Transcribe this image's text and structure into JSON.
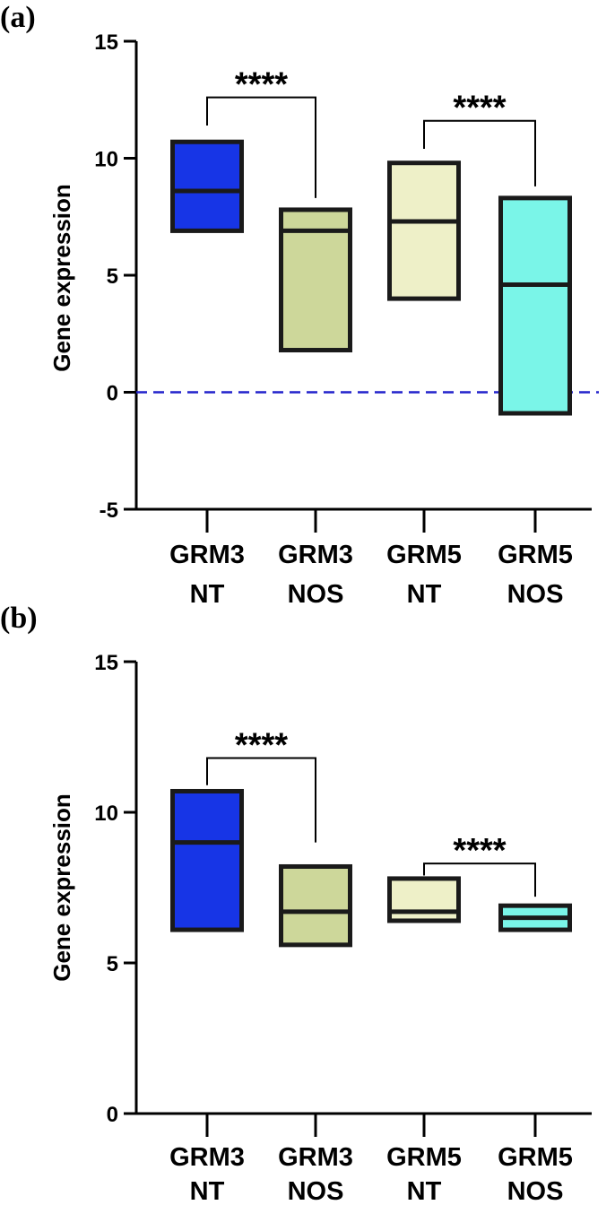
{
  "chart_data": [
    {
      "panel_label": "(a)",
      "type": "box",
      "title": "",
      "xlabel": "",
      "ylabel": "Gene expression",
      "ylim": [
        -5,
        15
      ],
      "yticks": [
        "15",
        "10",
        "5",
        "0",
        "-5"
      ],
      "reference_line": {
        "y": 0,
        "style": "dashed",
        "color": "#2222cc"
      },
      "categories": [
        {
          "line1": "GRM3",
          "line2": "NT"
        },
        {
          "line1": "GRM3",
          "line2": "NOS"
        },
        {
          "line1": "GRM5",
          "line2": "NT"
        },
        {
          "line1": "GRM5",
          "line2": "NOS"
        }
      ],
      "boxes": [
        {
          "min": 6.9,
          "median": 8.6,
          "max": 10.7,
          "color": "#1735e6"
        },
        {
          "min": 1.8,
          "median": 6.9,
          "max": 7.8,
          "color": "#cdd79a"
        },
        {
          "min": 4.0,
          "median": 7.3,
          "max": 9.8,
          "color": "#eef0c8"
        },
        {
          "min": -0.9,
          "median": 4.6,
          "max": 8.3,
          "color": "#7af5e8"
        }
      ],
      "significance": [
        {
          "from": 0,
          "to": 1,
          "label": "****",
          "y": 12.6,
          "y_start": 11.4,
          "y_end": 8.3
        },
        {
          "from": 2,
          "to": 3,
          "label": "****",
          "y": 11.6,
          "y_start": 10.4,
          "y_end": 8.8
        }
      ]
    },
    {
      "panel_label": "(b)",
      "type": "box",
      "title": "",
      "xlabel": "",
      "ylabel": "Gene expression",
      "ylim": [
        0,
        15
      ],
      "yticks": [
        "15",
        "10",
        "5",
        "0"
      ],
      "categories": [
        {
          "line1": "GRM3",
          "line2": "NT"
        },
        {
          "line1": "GRM3",
          "line2": "NOS"
        },
        {
          "line1": "GRM5",
          "line2": "NT"
        },
        {
          "line1": "GRM5",
          "line2": "NOS"
        }
      ],
      "boxes": [
        {
          "min": 6.1,
          "median": 9.0,
          "max": 10.7,
          "color": "#1735e6"
        },
        {
          "min": 5.6,
          "median": 6.7,
          "max": 8.2,
          "color": "#cdd79a"
        },
        {
          "min": 6.4,
          "median": 6.7,
          "max": 7.8,
          "color": "#eef0c8"
        },
        {
          "min": 6.1,
          "median": 6.5,
          "max": 6.9,
          "color": "#7af5e8"
        }
      ],
      "significance": [
        {
          "from": 0,
          "to": 1,
          "label": "****",
          "y": 11.8,
          "y_start": 10.9,
          "y_end": 9.0
        },
        {
          "from": 2,
          "to": 3,
          "label": "****",
          "y": 8.3,
          "y_start": 7.9,
          "y_end": 7.2
        }
      ]
    }
  ]
}
